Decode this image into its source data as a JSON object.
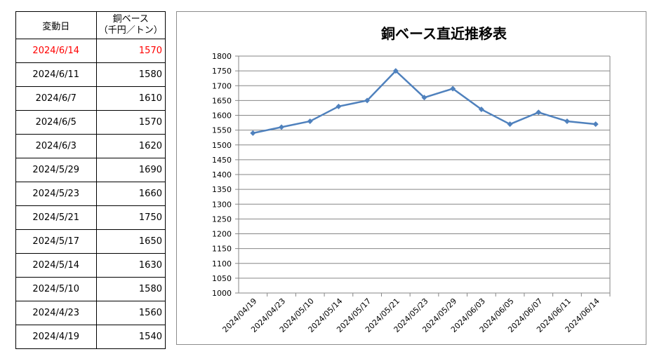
{
  "table": {
    "header_date": "変動日",
    "header_price_line1": "銅ベース",
    "header_price_line2": "（千円／トン）",
    "rows": [
      {
        "date": "2024/6/14",
        "price": "1570"
      },
      {
        "date": "2024/6/11",
        "price": "1580"
      },
      {
        "date": "2024/6/7",
        "price": "1610"
      },
      {
        "date": "2024/6/5",
        "price": "1570"
      },
      {
        "date": "2024/6/3",
        "price": "1620"
      },
      {
        "date": "2024/5/29",
        "price": "1690"
      },
      {
        "date": "2024/5/23",
        "price": "1660"
      },
      {
        "date": "2024/5/21",
        "price": "1750"
      },
      {
        "date": "2024/5/17",
        "price": "1650"
      },
      {
        "date": "2024/5/14",
        "price": "1630"
      },
      {
        "date": "2024/5/10",
        "price": "1580"
      },
      {
        "date": "2024/4/23",
        "price": "1560"
      },
      {
        "date": "2024/4/19",
        "price": "1540"
      }
    ],
    "highlight_color": "#ff0000"
  },
  "chart_data": {
    "type": "line",
    "title": "銅ベース直近推移表",
    "xlabel": "",
    "ylabel": "",
    "x": [
      "2024/04/19",
      "2024/04/23",
      "2024/05/10",
      "2024/05/14",
      "2024/05/17",
      "2024/05/21",
      "2024/05/23",
      "2024/05/29",
      "2024/06/03",
      "2024/06/05",
      "2024/06/07",
      "2024/06/11",
      "2024/06/14"
    ],
    "series": [
      {
        "values": [
          1540,
          1560,
          1580,
          1630,
          1650,
          1750,
          1660,
          1690,
          1620,
          1570,
          1610,
          1580,
          1570
        ],
        "color": "#4f81bd"
      }
    ],
    "ylim": [
      1000,
      1800
    ],
    "yticks": [
      1000,
      1050,
      1100,
      1150,
      1200,
      1250,
      1300,
      1350,
      1400,
      1450,
      1500,
      1550,
      1600,
      1650,
      1700,
      1750,
      1800
    ],
    "grid": true,
    "legend": "none"
  }
}
